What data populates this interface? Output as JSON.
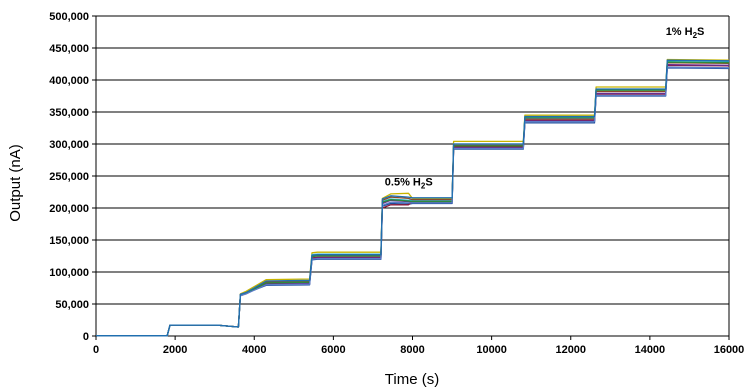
{
  "chart_data": {
    "type": "line",
    "xlabel": "Time (s)",
    "ylabel": "Output (nA)",
    "xlim": [
      0,
      16000
    ],
    "ylim": [
      0,
      500000
    ],
    "x_ticks": [
      "0",
      "2000",
      "4000",
      "6000",
      "8000",
      "10000",
      "12000",
      "14000",
      "16000"
    ],
    "y_ticks": [
      "0",
      "50,000",
      "100,000",
      "150,000",
      "200,000",
      "250,000",
      "300,000",
      "350,000",
      "400,000",
      "450,000",
      "500,000"
    ],
    "grid": "horizontal",
    "legend": "none",
    "annotations": [
      {
        "text_main": "0.5% H",
        "text_sub": "2",
        "text_tail": "S",
        "x": 7300,
        "y": 235000
      },
      {
        "text_main": "1% H",
        "text_sub": "2",
        "text_tail": "S",
        "x": 14400,
        "y": 470000
      }
    ],
    "series_colors": [
      "#1f4e9c",
      "#8b1a3a",
      "#c8b400",
      "#27b3c7",
      "#6a2c8e",
      "#8a4a2a",
      "#2e8b3a",
      "#5a7dc8",
      "#1f6fb0"
    ],
    "steps": {
      "x": [
        0,
        1800,
        1870,
        3050,
        3600,
        3650,
        3800,
        4300,
        5400,
        5460,
        5600,
        7200,
        7240,
        7450,
        7900,
        8000,
        9000,
        9040,
        10800,
        10840,
        12600,
        12640,
        14400,
        14440,
        16000
      ],
      "series": [
        {
          "values": [
            500,
            500,
            17000,
            17000,
            14000,
            65000,
            67000,
            79000,
            80000,
            119000,
            120000,
            120000,
            203000,
            207000,
            206000,
            207000,
            207000,
            292000,
            292000,
            333000,
            333000,
            375000,
            375000,
            419000,
            418000
          ]
        },
        {
          "values": [
            500,
            500,
            17000,
            17000,
            14000,
            63000,
            66000,
            82000,
            83000,
            122000,
            123000,
            123000,
            200000,
            205000,
            205000,
            210000,
            210000,
            295000,
            295000,
            337000,
            337000,
            378000,
            378000,
            423000,
            422000
          ]
        },
        {
          "values": [
            500,
            500,
            17000,
            17000,
            14000,
            66000,
            70000,
            88000,
            89000,
            130000,
            131000,
            131000,
            215000,
            222000,
            223000,
            215000,
            214000,
            304000,
            304000,
            345000,
            345000,
            389000,
            389000,
            432000,
            431000
          ]
        },
        {
          "values": [
            500,
            500,
            17000,
            17000,
            14000,
            65000,
            68000,
            85000,
            86000,
            127000,
            128000,
            128000,
            210000,
            214000,
            212000,
            212000,
            212000,
            300000,
            300000,
            341000,
            341000,
            385000,
            385000,
            430000,
            429000
          ]
        },
        {
          "values": [
            500,
            500,
            17000,
            17000,
            14000,
            64000,
            67000,
            81000,
            82000,
            121000,
            122000,
            122000,
            207000,
            212000,
            210000,
            209000,
            209000,
            294000,
            294000,
            336000,
            336000,
            379000,
            379000,
            424000,
            423000
          ]
        },
        {
          "values": [
            500,
            500,
            17000,
            17000,
            14000,
            65000,
            68000,
            84000,
            85000,
            125000,
            126000,
            126000,
            212000,
            217000,
            215000,
            213000,
            213000,
            298000,
            298000,
            339000,
            339000,
            382000,
            382000,
            427000,
            426000
          ]
        },
        {
          "values": [
            500,
            500,
            17000,
            17000,
            14000,
            64000,
            67000,
            83000,
            84000,
            124000,
            125000,
            125000,
            209000,
            213000,
            211000,
            210000,
            210000,
            297000,
            297000,
            342000,
            342000,
            384000,
            384000,
            428000,
            427000
          ]
        },
        {
          "values": [
            500,
            500,
            17000,
            17000,
            14000,
            63000,
            66000,
            80000,
            81000,
            120000,
            121000,
            121000,
            204000,
            209000,
            208000,
            208000,
            208000,
            293000,
            293000,
            335000,
            335000,
            376000,
            376000,
            420000,
            419000
          ]
        },
        {
          "values": [
            500,
            500,
            17000,
            17000,
            14000,
            65000,
            68000,
            86000,
            87000,
            126000,
            127000,
            127000,
            214000,
            219000,
            217000,
            216000,
            216000,
            300000,
            300000,
            343000,
            343000,
            386000,
            386000,
            431000,
            430000
          ]
        }
      ]
    }
  }
}
